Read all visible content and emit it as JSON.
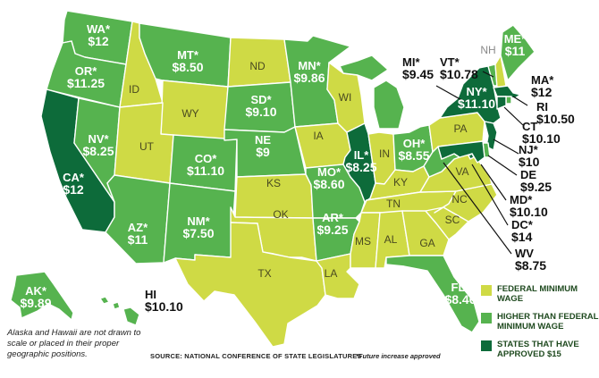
{
  "colors": {
    "federal": "#cfda45",
    "higher": "#56b34f",
    "approved15": "#0d6b3a",
    "outline": "#ffffff"
  },
  "legend": {
    "federal": "FEDERAL MINIMUM WAGE",
    "higher": "HIGHER THAN FEDERAL MINIMUM WAGE",
    "approved15": "STATES THAT HAVE APPROVED $15"
  },
  "note": "Alaska and Hawaii are not drawn to scale or placed in their proper geographic positions.",
  "source": "SOURCE: NATIONAL CONFERENCE OF STATE LEGISLATURES",
  "future_note": "*Future increase approved",
  "states": {
    "WA": {
      "abbr": "WA*",
      "wage": "$12",
      "category": "higher"
    },
    "OR": {
      "abbr": "OR*",
      "wage": "$11.25",
      "category": "higher"
    },
    "CA": {
      "abbr": "CA*",
      "wage": "$12",
      "category": "approved15"
    },
    "NV": {
      "abbr": "NV*",
      "wage": "$8.25",
      "category": "higher"
    },
    "ID": {
      "abbr": "ID",
      "wage": "",
      "category": "federal"
    },
    "MT": {
      "abbr": "MT*",
      "wage": "$8.50",
      "category": "higher"
    },
    "WY": {
      "abbr": "WY",
      "wage": "",
      "category": "federal"
    },
    "UT": {
      "abbr": "UT",
      "wage": "",
      "category": "federal"
    },
    "AZ": {
      "abbr": "AZ*",
      "wage": "$11",
      "category": "higher"
    },
    "CO": {
      "abbr": "CO*",
      "wage": "$11.10",
      "category": "higher"
    },
    "NM": {
      "abbr": "NM*",
      "wage": "$7.50",
      "category": "higher"
    },
    "ND": {
      "abbr": "ND",
      "wage": "",
      "category": "federal"
    },
    "SD": {
      "abbr": "SD*",
      "wage": "$9.10",
      "category": "higher"
    },
    "NE": {
      "abbr": "NE",
      "wage": "$9",
      "category": "higher"
    },
    "KS": {
      "abbr": "KS",
      "wage": "",
      "category": "federal"
    },
    "OK": {
      "abbr": "OK",
      "wage": "",
      "category": "federal"
    },
    "TX": {
      "abbr": "TX",
      "wage": "",
      "category": "federal"
    },
    "MN": {
      "abbr": "MN*",
      "wage": "$9.86",
      "category": "higher"
    },
    "IA": {
      "abbr": "IA",
      "wage": "",
      "category": "federal"
    },
    "MO": {
      "abbr": "MO*",
      "wage": "$8.60",
      "category": "higher"
    },
    "AR": {
      "abbr": "AR*",
      "wage": "$9.25",
      "category": "higher"
    },
    "LA": {
      "abbr": "LA",
      "wage": "",
      "category": "federal"
    },
    "WI": {
      "abbr": "WI",
      "wage": "",
      "category": "federal"
    },
    "IL": {
      "abbr": "IL*",
      "wage": "$8.25",
      "category": "approved15"
    },
    "MI": {
      "abbr": "MI*",
      "wage": "$9.45",
      "category": "higher"
    },
    "IN": {
      "abbr": "IN",
      "wage": "",
      "category": "federal"
    },
    "OH": {
      "abbr": "OH*",
      "wage": "$8.55",
      "category": "higher"
    },
    "KY": {
      "abbr": "KY",
      "wage": "",
      "category": "federal"
    },
    "TN": {
      "abbr": "TN",
      "wage": "",
      "category": "federal"
    },
    "MS": {
      "abbr": "MS",
      "wage": "",
      "category": "federal"
    },
    "AL": {
      "abbr": "AL",
      "wage": "",
      "category": "federal"
    },
    "GA": {
      "abbr": "GA",
      "wage": "",
      "category": "federal"
    },
    "FL": {
      "abbr": "FL*",
      "wage": "$8.46",
      "category": "higher"
    },
    "SC": {
      "abbr": "SC",
      "wage": "",
      "category": "federal"
    },
    "NC": {
      "abbr": "NC",
      "wage": "",
      "category": "federal"
    },
    "VA": {
      "abbr": "VA",
      "wage": "",
      "category": "federal"
    },
    "WV": {
      "abbr": "WV",
      "wage": "$8.75",
      "category": "higher"
    },
    "PA": {
      "abbr": "PA",
      "wage": "",
      "category": "federal"
    },
    "NY": {
      "abbr": "NY*",
      "wage": "$11.10",
      "category": "approved15"
    },
    "VT": {
      "abbr": "VT*",
      "wage": "$10.78",
      "category": "higher"
    },
    "NH": {
      "abbr": "NH",
      "wage": "",
      "category": "federal"
    },
    "ME": {
      "abbr": "ME*",
      "wage": "$11",
      "category": "higher"
    },
    "MA": {
      "abbr": "MA*",
      "wage": "$12",
      "category": "approved15"
    },
    "RI": {
      "abbr": "RI",
      "wage": "$10.50",
      "category": "higher"
    },
    "CT": {
      "abbr": "CT",
      "wage": "$10.10",
      "category": "approved15"
    },
    "NJ": {
      "abbr": "NJ*",
      "wage": "$10",
      "category": "approved15"
    },
    "DE": {
      "abbr": "DE",
      "wage": "$9.25",
      "category": "higher"
    },
    "MD": {
      "abbr": "MD*",
      "wage": "$10.10",
      "category": "approved15"
    },
    "DC": {
      "abbr": "DC*",
      "wage": "$14",
      "category": "approved15"
    },
    "AK": {
      "abbr": "AK*",
      "wage": "$9.89",
      "category": "higher"
    },
    "HI": {
      "abbr": "HI",
      "wage": "$10.10",
      "category": "higher"
    }
  }
}
